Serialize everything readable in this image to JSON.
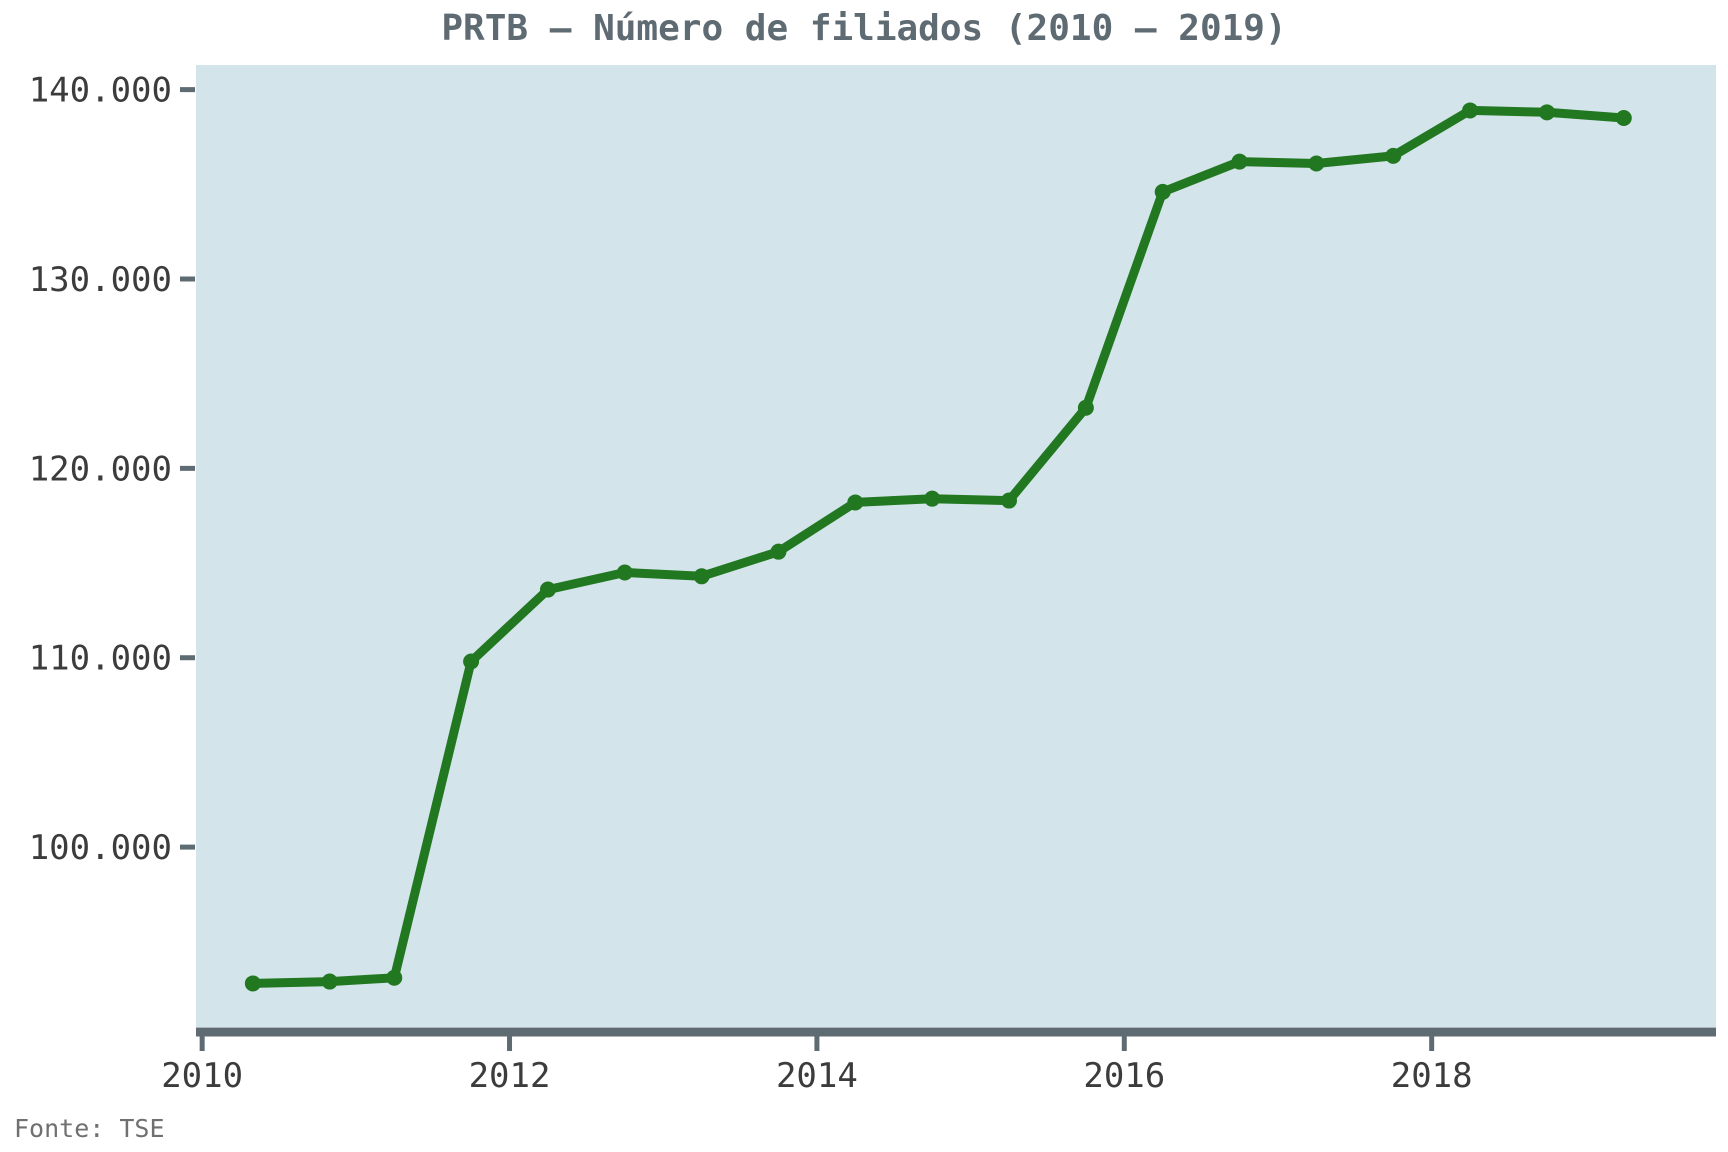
{
  "chart_data": {
    "type": "line",
    "title": "PRTB – Número de filiados (2010 – 2019)",
    "source": "Fonte: TSE",
    "xlabel": "",
    "ylabel": "",
    "xlim": [
      2009.96,
      2019.85
    ],
    "ylim": [
      90500,
      141300
    ],
    "x_ticks": [
      2010,
      2012,
      2014,
      2016,
      2018
    ],
    "x_tick_labels": [
      "2010",
      "2012",
      "2014",
      "2016",
      "2018"
    ],
    "y_ticks": [
      100000,
      110000,
      120000,
      130000,
      140000
    ],
    "y_tick_labels": [
      "100.000",
      "110.000",
      "120.000",
      "130.000",
      "140.000"
    ],
    "grid": false,
    "legend": "none",
    "colors": {
      "line": "#217821",
      "plot_background": "#d4e4eb",
      "axis": "#5f6b73"
    },
    "series": [
      {
        "x": [
          2010.33,
          2010.83,
          2011.25,
          2011.75,
          2012.25,
          2012.75,
          2013.25,
          2013.75,
          2014.25,
          2014.75,
          2015.25,
          2015.75,
          2016.25,
          2016.75,
          2017.25,
          2017.75,
          2018.25,
          2018.75,
          2019.25
        ],
        "values": [
          92800,
          92900,
          93100,
          109800,
          113600,
          114500,
          114300,
          115600,
          118200,
          118400,
          118300,
          123200,
          134600,
          136200,
          136100,
          136500,
          138900,
          138800,
          138500
        ]
      }
    ]
  }
}
